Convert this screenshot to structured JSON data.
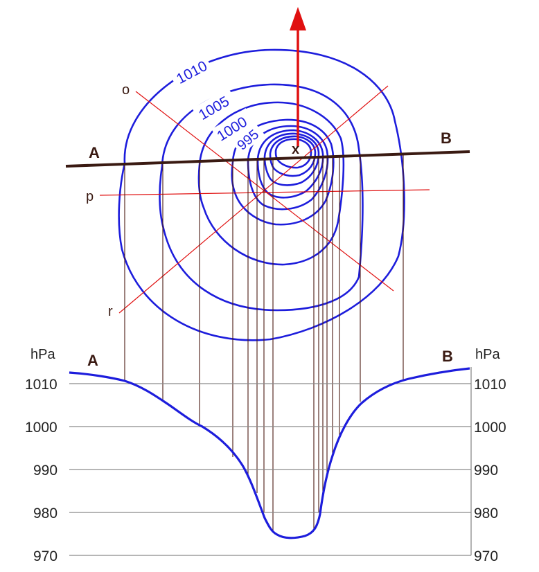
{
  "map": {
    "section_start": "A",
    "section_end": "B",
    "center_mark": "x",
    "line_labels": {
      "o": "o",
      "p": "p",
      "r": "r"
    },
    "isobar_labels": [
      "1010",
      "1005",
      "1000",
      "995"
    ]
  },
  "profile": {
    "unit_left": "hPa",
    "unit_right": "hPa",
    "end_left": "A",
    "end_right": "B",
    "y_ticks": [
      "1010",
      "1000",
      "990",
      "980",
      "970"
    ]
  },
  "colors": {
    "isobar": "#1d1ddc",
    "section_line": "#3a1a12",
    "aux_line": "#e01010",
    "arrow": "#e01010",
    "drop_line": "#4a1a12",
    "grid": "#8a8a8a"
  }
}
